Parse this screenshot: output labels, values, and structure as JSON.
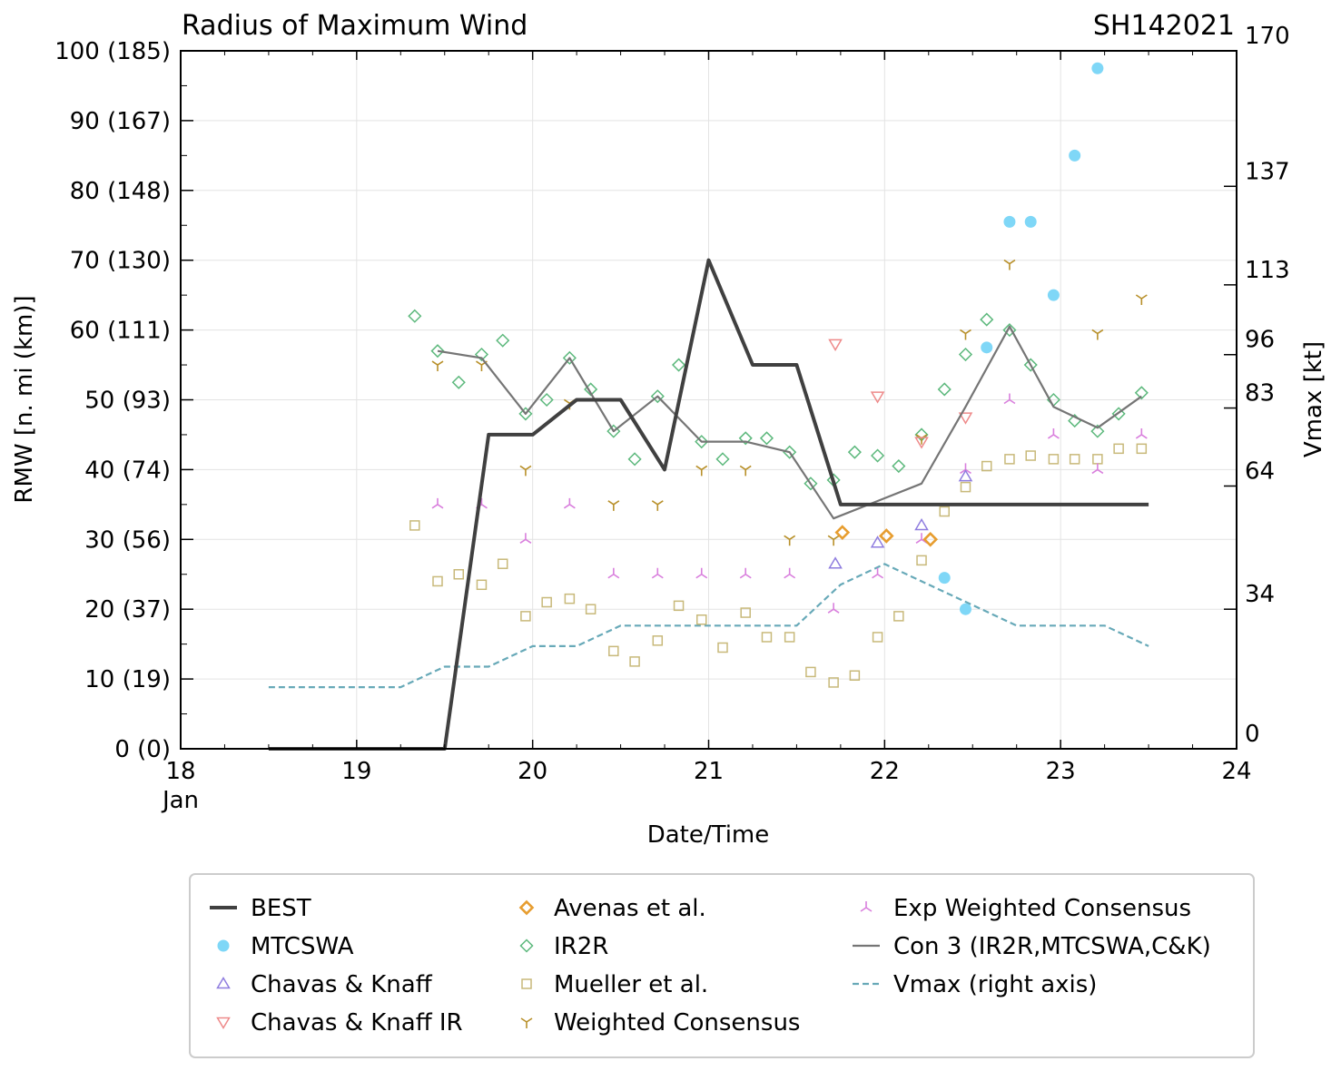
{
  "chart_data": {
    "type": "line",
    "title": "Radius of Maximum Wind",
    "storm_id": "SH142021",
    "xlabel": "Date/Time",
    "ylabel": "RMW [n. mi (km)]",
    "ylabel_right": "Vmax [kt]",
    "xlim": [
      18,
      24
    ],
    "ylim": [
      0,
      100
    ],
    "x_ticks": [
      {
        "value": 18,
        "label": "18",
        "sublabel": "Jan"
      },
      {
        "value": 19,
        "label": "19"
      },
      {
        "value": 20,
        "label": "20"
      },
      {
        "value": 21,
        "label": "21"
      },
      {
        "value": 22,
        "label": "22"
      },
      {
        "value": 23,
        "label": "23"
      },
      {
        "value": 24,
        "label": "24"
      }
    ],
    "y_ticks": [
      {
        "value": 0,
        "label": "0 (0)"
      },
      {
        "value": 10,
        "label": "10 (19)"
      },
      {
        "value": 20,
        "label": "20 (37)"
      },
      {
        "value": 30,
        "label": "30 (56)"
      },
      {
        "value": 40,
        "label": "40 (74)"
      },
      {
        "value": 50,
        "label": "50 (93)"
      },
      {
        "value": 60,
        "label": "60 (111)"
      },
      {
        "value": 70,
        "label": "70 (130)"
      },
      {
        "value": 80,
        "label": "80 (148)"
      },
      {
        "value": 90,
        "label": "90 (167)"
      },
      {
        "value": 100,
        "label": "100 (185)"
      }
    ],
    "right_axis": {
      "vlim": [
        0,
        170
      ],
      "ticks": [
        {
          "value": 0,
          "label": "0"
        },
        {
          "value": 34,
          "label": "34"
        },
        {
          "value": 64,
          "label": "64"
        },
        {
          "value": 83,
          "label": "83"
        },
        {
          "value": 96,
          "label": "96"
        },
        {
          "value": 113,
          "label": "113"
        },
        {
          "value": 137,
          "label": "137"
        },
        {
          "value": 170,
          "label": "170"
        }
      ]
    },
    "grid": true,
    "legend_position": "bottom",
    "series": [
      {
        "name": "BEST",
        "key": "best",
        "color": "#404040",
        "marker": "line",
        "x": [
          18.5,
          19.5,
          19.75,
          20.0,
          20.25,
          20.5,
          20.75,
          21.0,
          21.25,
          21.5,
          21.75,
          22.0,
          22.25,
          22.5,
          22.75,
          23.0,
          23.25,
          23.5
        ],
        "y": [
          0,
          0,
          45,
          45,
          50,
          50,
          40,
          70,
          55,
          55,
          35,
          35,
          35,
          35,
          35,
          35,
          35,
          35
        ]
      },
      {
        "name": "MTCSWA",
        "key": "mtcswa",
        "color": "#7fd7f7",
        "marker": "circle",
        "x": [
          22.34,
          22.46,
          22.58,
          22.71,
          22.83,
          22.96,
          23.08,
          23.21
        ],
        "y": [
          24.5,
          20,
          57.5,
          75.5,
          75.5,
          65,
          85,
          97.5
        ]
      },
      {
        "name": "Chavas & Knaff",
        "key": "ck",
        "color": "#8f7ddf",
        "marker": "triangle-up",
        "x": [
          21.72,
          21.96,
          22.21,
          22.46
        ],
        "y": [
          26.5,
          29.5,
          32,
          39
        ]
      },
      {
        "name": "Chavas & Knaff IR",
        "key": "ckir",
        "color": "#ee8a8a",
        "marker": "triangle-down",
        "x": [
          21.72,
          21.96,
          22.21,
          22.46
        ],
        "y": [
          58,
          50.5,
          44,
          47.5
        ]
      },
      {
        "name": "Avenas et al.",
        "key": "avenas",
        "color": "#e79d2f",
        "marker": "diamond-bold",
        "x": [
          21.76,
          22.01,
          22.26
        ],
        "y": [
          31,
          30.5,
          30
        ]
      },
      {
        "name": "IR2R",
        "key": "ir2r",
        "color": "#5cb87c",
        "marker": "diamond",
        "x": [
          19.33,
          19.46,
          19.58,
          19.71,
          19.83,
          19.96,
          20.08,
          20.21,
          20.33,
          20.46,
          20.58,
          20.71,
          20.83,
          20.96,
          21.08,
          21.21,
          21.33,
          21.46,
          21.58,
          21.71,
          21.83,
          21.96,
          22.08,
          22.21,
          22.34,
          22.46,
          22.58,
          22.71,
          22.83,
          22.96,
          23.08,
          23.21,
          23.33,
          23.46
        ],
        "y": [
          62,
          57,
          52.5,
          56.5,
          58.5,
          48,
          50,
          56,
          51.5,
          45.5,
          41.5,
          50.5,
          55,
          44,
          41.5,
          44.5,
          44.5,
          42.5,
          38,
          38.5,
          42.5,
          42,
          40.5,
          45,
          51.5,
          56.5,
          61.5,
          60,
          55,
          50,
          47,
          45.5,
          48,
          51
        ]
      },
      {
        "name": "Mueller et al.",
        "key": "mueller",
        "color": "#c8b97a",
        "marker": "square",
        "x": [
          19.33,
          19.46,
          19.58,
          19.71,
          19.83,
          19.96,
          20.08,
          20.21,
          20.33,
          20.46,
          20.58,
          20.71,
          20.83,
          20.96,
          21.08,
          21.21,
          21.33,
          21.46,
          21.58,
          21.71,
          21.83,
          21.96,
          22.08,
          22.21,
          22.34,
          22.46,
          22.58,
          22.71,
          22.83,
          22.96,
          23.08,
          23.21,
          23.33,
          23.46
        ],
        "y": [
          32,
          24,
          25,
          23.5,
          26.5,
          19,
          21,
          21.5,
          20,
          14,
          12.5,
          15.5,
          20.5,
          18.5,
          14.5,
          19.5,
          16,
          16,
          11,
          9.5,
          10.5,
          16,
          19,
          27,
          34,
          37.5,
          40.5,
          41.5,
          42,
          41.5,
          41.5,
          41.5,
          43,
          43
        ]
      },
      {
        "name": "Weighted Consensus",
        "key": "wc",
        "color": "#b8902a",
        "marker": "tri-down",
        "x": [
          19.46,
          19.71,
          19.96,
          20.21,
          20.46,
          20.71,
          20.96,
          21.21,
          21.46,
          21.71,
          22.21,
          22.46,
          22.71,
          23.21,
          23.46
        ],
        "y": [
          55,
          55,
          40,
          49.5,
          35,
          35,
          40,
          40,
          30,
          30,
          44.5,
          59.5,
          69.5,
          59.5,
          64.5
        ]
      },
      {
        "name": "Exp Weighted Consensus",
        "key": "ewc",
        "color": "#d97fdd",
        "marker": "tri-up",
        "x": [
          19.46,
          19.71,
          19.96,
          20.21,
          20.46,
          20.71,
          20.96,
          21.21,
          21.46,
          21.71,
          21.96,
          22.21,
          22.46,
          22.71,
          22.96,
          23.21,
          23.46
        ],
        "y": [
          35,
          35,
          30,
          35,
          25,
          25,
          25,
          25,
          25,
          20,
          25,
          30,
          40,
          50,
          45,
          40,
          45
        ]
      },
      {
        "name": "Con 3 (IR2R,MTCSWA,C&K)",
        "key": "con3",
        "color": "#757575",
        "marker": "thin-line",
        "x": [
          19.46,
          19.71,
          19.96,
          20.21,
          20.46,
          20.71,
          20.96,
          21.21,
          21.46,
          21.71,
          21.96,
          22.21,
          22.46,
          22.71,
          22.96,
          23.21,
          23.46
        ],
        "y": [
          57,
          56,
          48,
          56,
          45.5,
          50.5,
          44,
          44,
          42.5,
          33,
          35.5,
          38,
          49,
          60.5,
          49,
          46,
          50.5
        ]
      },
      {
        "name": "Vmax (right axis)",
        "key": "vmax",
        "color": "#67a9b8",
        "marker": "dashed-line",
        "x": [
          18.5,
          18.75,
          19.0,
          19.25,
          19.5,
          19.75,
          20.0,
          20.25,
          20.5,
          20.75,
          21.0,
          21.25,
          21.5,
          21.75,
          22.0,
          22.25,
          22.5,
          22.75,
          23.0,
          23.25,
          23.5
        ],
        "v": [
          15,
          15,
          15,
          15,
          20,
          20,
          25,
          25,
          30,
          30,
          30,
          30,
          30,
          40,
          45,
          40,
          35,
          30,
          30,
          30,
          25
        ]
      }
    ]
  }
}
